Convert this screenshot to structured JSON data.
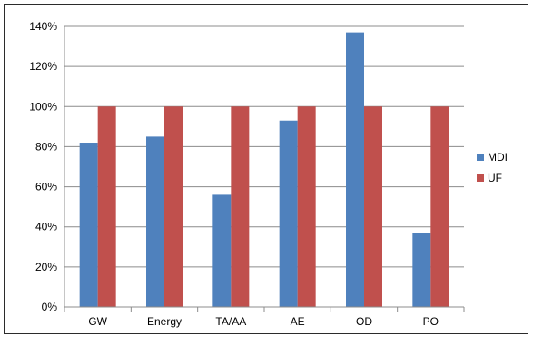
{
  "chart_data": {
    "type": "bar",
    "categories": [
      "GW",
      "Energy",
      "TA/AA",
      "AE",
      "OD",
      "PO"
    ],
    "series": [
      {
        "name": "MDI",
        "color": "#4F81BD",
        "values": [
          82,
          85,
          56,
          93,
          137,
          37
        ]
      },
      {
        "name": "UF",
        "color": "#C0504D",
        "values": [
          100,
          100,
          100,
          100,
          100,
          100
        ]
      }
    ],
    "y_ticks": [
      0,
      20,
      40,
      60,
      80,
      100,
      120,
      140
    ],
    "y_tick_suffix": "%",
    "ylim": [
      0,
      140
    ],
    "title": "",
    "xlabel": "",
    "ylabel": "",
    "grid": true,
    "legend_position": "right",
    "gridline_color": "#8C8C8C",
    "axis_color": "#8C8C8C"
  }
}
